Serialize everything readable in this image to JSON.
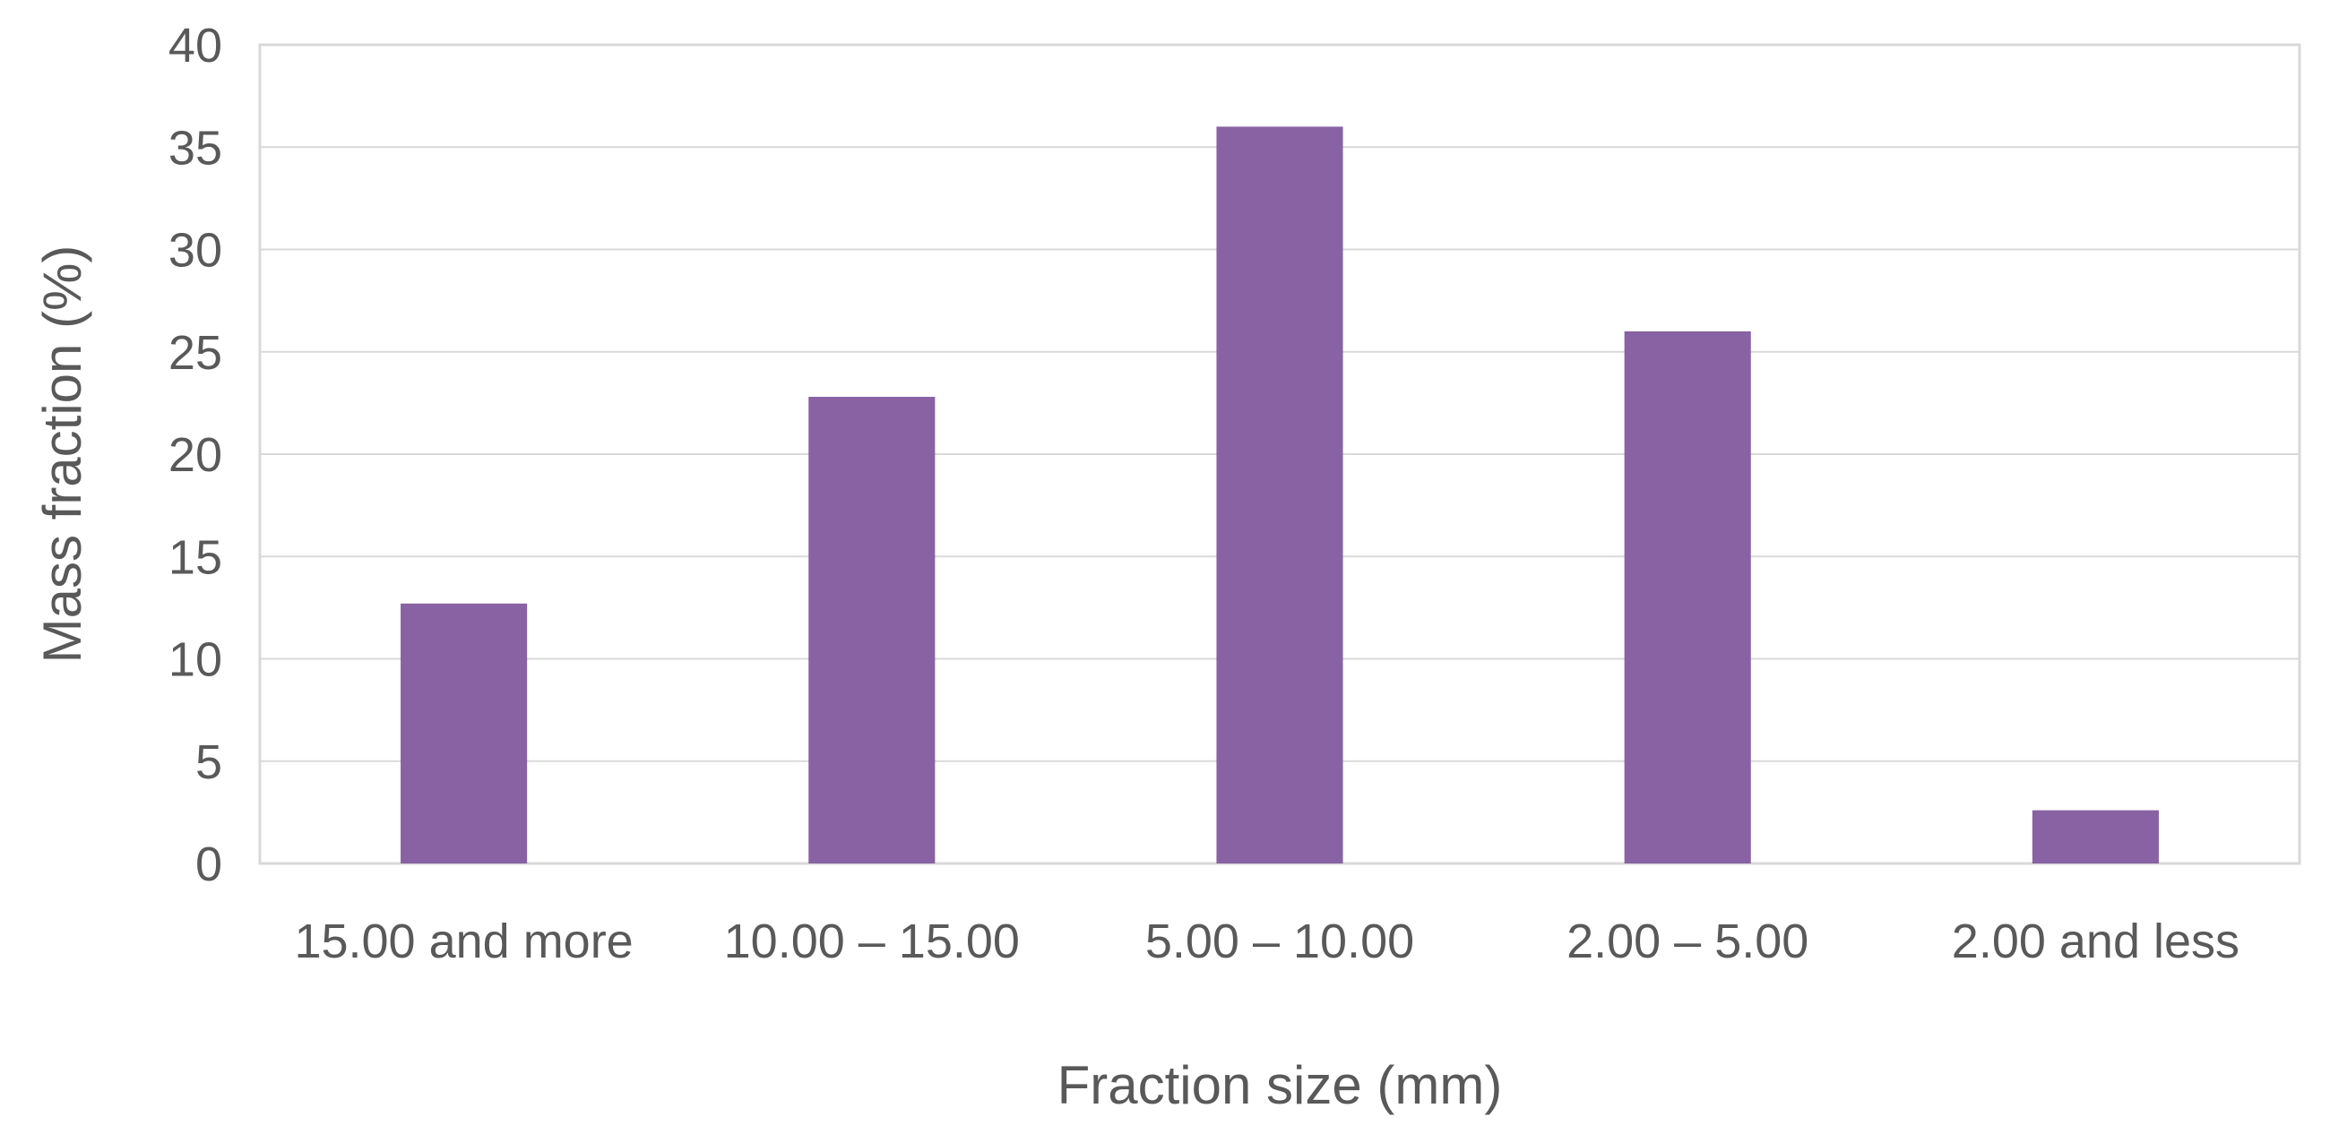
{
  "chart_data": {
    "type": "bar",
    "title": "",
    "xlabel": "Fraction size (mm)",
    "ylabel": "Mass fraction (%)",
    "categories": [
      "15.00 and more",
      "10.00 – 15.00",
      "5.00 – 10.00",
      "2.00 – 5.00",
      "2.00 and less"
    ],
    "values": [
      12.7,
      22.8,
      36.0,
      26.0,
      2.6
    ],
    "ylim": [
      0,
      40
    ],
    "yticks": [
      0,
      5,
      10,
      15,
      20,
      25,
      30,
      35,
      40
    ],
    "grid": true,
    "legend": "none",
    "colors": {
      "bar": "#8862A3",
      "grid": "#d9d9d9",
      "text": "#595959"
    }
  }
}
